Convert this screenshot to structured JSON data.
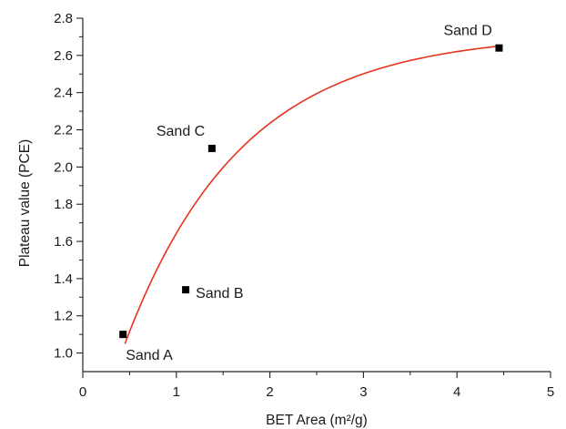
{
  "chart_data": {
    "type": "scatter",
    "title": "",
    "xlabel": "BET Area (m²/g)",
    "ylabel": "Plateau value (PCE)",
    "xlim": [
      0,
      5
    ],
    "ylim": [
      0.9,
      2.8
    ],
    "x_ticks": [
      0,
      1,
      2,
      3,
      4,
      5
    ],
    "x_tick_labels": [
      "0",
      "1",
      "2",
      "3",
      "4",
      "5"
    ],
    "y_ticks": [
      1.0,
      1.2,
      1.4,
      1.6,
      1.8,
      2.0,
      2.2,
      2.4,
      2.6,
      2.8
    ],
    "y_tick_labels": [
      "1.0",
      "1.2",
      "1.4",
      "1.6",
      "1.8",
      "2.0",
      "2.2",
      "2.4",
      "2.6",
      "2.8"
    ],
    "grid": false,
    "points": [
      {
        "label": "Sand A",
        "x": 0.43,
        "y": 1.1,
        "label_pos": "below-right"
      },
      {
        "label": "Sand B",
        "x": 1.1,
        "y": 1.34,
        "label_pos": "right"
      },
      {
        "label": "Sand C",
        "x": 1.38,
        "y": 2.1,
        "label_pos": "above-left"
      },
      {
        "label": "Sand D",
        "x": 4.45,
        "y": 2.64,
        "label_pos": "above-left"
      }
    ],
    "fit_curve": {
      "kind": "exponential-saturation",
      "x_range": [
        0.45,
        4.45
      ],
      "y_start": 1.05,
      "y_end": 2.65,
      "color": "#e8321e"
    },
    "marker_color": "#000000"
  }
}
